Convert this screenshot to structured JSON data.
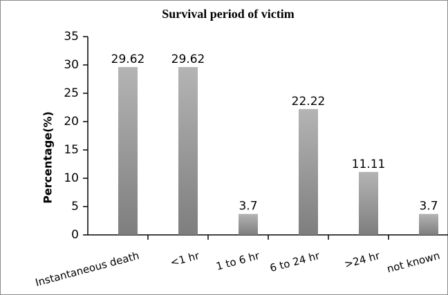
{
  "chart_data": {
    "type": "bar",
    "title": "Survival period of victim",
    "y_label": "Percentage(%)",
    "categories": [
      "Instantaneous death",
      "<1 hr",
      "1 to 6 hr",
      "6 to 24 hr",
      ">24 hr",
      "not known"
    ],
    "values": [
      29.62,
      29.62,
      3.7,
      22.22,
      11.11,
      3.7
    ],
    "color": "#9a9a9a",
    "ylim": [
      0,
      35
    ],
    "yticks": [
      0,
      5,
      10,
      15,
      20,
      25,
      30,
      35
    ],
    "grid": false
  }
}
